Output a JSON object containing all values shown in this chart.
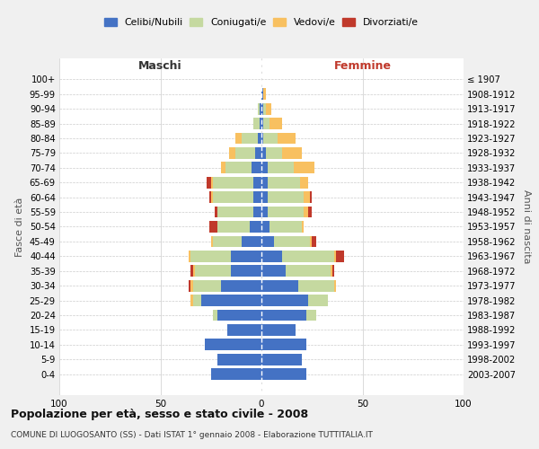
{
  "age_groups": [
    "0-4",
    "5-9",
    "10-14",
    "15-19",
    "20-24",
    "25-29",
    "30-34",
    "35-39",
    "40-44",
    "45-49",
    "50-54",
    "55-59",
    "60-64",
    "65-69",
    "70-74",
    "75-79",
    "80-84",
    "85-89",
    "90-94",
    "95-99",
    "100+"
  ],
  "birth_years": [
    "2003-2007",
    "1998-2002",
    "1993-1997",
    "1988-1992",
    "1983-1987",
    "1978-1982",
    "1973-1977",
    "1968-1972",
    "1963-1967",
    "1958-1962",
    "1953-1957",
    "1948-1952",
    "1943-1947",
    "1938-1942",
    "1933-1937",
    "1928-1932",
    "1923-1927",
    "1918-1922",
    "1913-1917",
    "1908-1912",
    "≤ 1907"
  ],
  "male": {
    "celibi": [
      25,
      22,
      28,
      17,
      22,
      30,
      20,
      15,
      15,
      10,
      6,
      4,
      4,
      4,
      5,
      3,
      2,
      1,
      1,
      0,
      0
    ],
    "coniugati": [
      0,
      0,
      0,
      0,
      2,
      4,
      14,
      18,
      20,
      14,
      16,
      18,
      20,
      20,
      13,
      10,
      8,
      3,
      1,
      0,
      0
    ],
    "vedovi": [
      0,
      0,
      0,
      0,
      0,
      1,
      1,
      1,
      1,
      1,
      0,
      0,
      1,
      1,
      2,
      3,
      3,
      0,
      0,
      0,
      0
    ],
    "divorziati": [
      0,
      0,
      0,
      0,
      0,
      0,
      1,
      1,
      0,
      0,
      4,
      1,
      1,
      2,
      0,
      0,
      0,
      0,
      0,
      0,
      0
    ]
  },
  "female": {
    "nubili": [
      22,
      20,
      22,
      17,
      22,
      23,
      18,
      12,
      10,
      6,
      4,
      3,
      3,
      3,
      3,
      2,
      1,
      1,
      1,
      1,
      0
    ],
    "coniugate": [
      0,
      0,
      0,
      0,
      5,
      10,
      18,
      22,
      26,
      18,
      16,
      18,
      18,
      16,
      13,
      8,
      7,
      3,
      1,
      0,
      0
    ],
    "vedove": [
      0,
      0,
      0,
      0,
      0,
      0,
      1,
      1,
      1,
      1,
      1,
      2,
      3,
      4,
      10,
      10,
      9,
      6,
      3,
      1,
      0
    ],
    "divorziate": [
      0,
      0,
      0,
      0,
      0,
      0,
      0,
      1,
      4,
      2,
      0,
      2,
      1,
      0,
      0,
      0,
      0,
      0,
      0,
      0,
      0
    ]
  },
  "colors": {
    "celibi": "#4472c4",
    "coniugati": "#c5d9a0",
    "vedovi": "#f8c060",
    "divorziati": "#c0392b"
  },
  "title": "Popolazione per età, sesso e stato civile - 2008",
  "subtitle": "COMUNE DI LUOGOSANTO (SS) - Dati ISTAT 1° gennaio 2008 - Elaborazione TUTTITALIA.IT",
  "xlabel_left": "Maschi",
  "xlabel_right": "Femmine",
  "ylabel_left": "Fasce di età",
  "ylabel_right": "Anni di nascita",
  "xlim": 100,
  "background_color": "#f0f0f0",
  "plot_bg_color": "#ffffff"
}
